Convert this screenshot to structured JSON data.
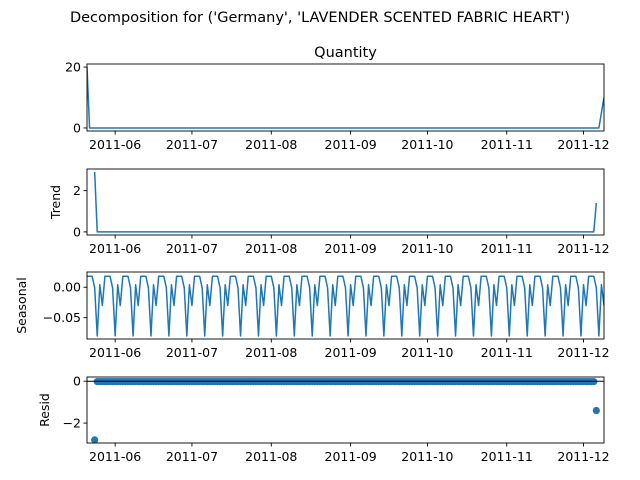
{
  "figure": {
    "title": "Decomposition for ('Germany', 'LAVENDER SCENTED FABRIC HEART')"
  },
  "chart_data": [
    {
      "type": "line",
      "title": "Quantity",
      "ylabel": "",
      "x_range": [
        "2011-05-21",
        "2011-12-09"
      ],
      "ylim": [
        -1,
        21
      ],
      "yticks": [
        0,
        20
      ],
      "ytick_labels": [
        "0",
        "20"
      ],
      "xticks": [
        "2011-06-01",
        "2011-07-01",
        "2011-08-01",
        "2011-09-01",
        "2011-10-01",
        "2011-11-01",
        "2011-12-01"
      ],
      "xtick_labels": [
        "2011-06",
        "2011-07",
        "2011-08",
        "2011-09",
        "2011-10",
        "2011-11",
        "2011-12"
      ],
      "series": [
        {
          "color": "#1f77b4",
          "points": [
            [
              "2011-05-21",
              20
            ],
            [
              "2011-05-22",
              0
            ],
            [
              "2011-12-07",
              0
            ],
            [
              "2011-12-09",
              10
            ]
          ]
        }
      ]
    },
    {
      "type": "line",
      "title": "",
      "ylabel": "Trend",
      "x_range": [
        "2011-05-21",
        "2011-12-09"
      ],
      "ylim": [
        -0.15,
        3.05
      ],
      "yticks": [
        0,
        2
      ],
      "ytick_labels": [
        "0",
        "2"
      ],
      "xticks": [
        "2011-06-01",
        "2011-07-01",
        "2011-08-01",
        "2011-09-01",
        "2011-10-01",
        "2011-11-01",
        "2011-12-01"
      ],
      "xtick_labels": [
        "2011-06",
        "2011-07",
        "2011-08",
        "2011-09",
        "2011-10",
        "2011-11",
        "2011-12"
      ],
      "series": [
        {
          "color": "#1f77b4",
          "points": [
            [
              "2011-05-24",
              2.9
            ],
            [
              "2011-05-25",
              0
            ],
            [
              "2011-12-05",
              0
            ],
            [
              "2011-12-06",
              1.4
            ]
          ]
        }
      ]
    },
    {
      "type": "line",
      "title": "",
      "ylabel": "Seasonal",
      "x_range": [
        "2011-05-21",
        "2011-12-09"
      ],
      "ylim": [
        -0.085,
        0.025
      ],
      "yticks": [
        0,
        -0.05
      ],
      "ytick_labels": [
        "0.00",
        "−0.05"
      ],
      "xticks": [
        "2011-06-01",
        "2011-07-01",
        "2011-08-01",
        "2011-09-01",
        "2011-10-01",
        "2011-11-01",
        "2011-12-01"
      ],
      "xtick_labels": [
        "2011-06",
        "2011-07",
        "2011-08",
        "2011-09",
        "2011-10",
        "2011-11",
        "2011-12"
      ],
      "series": [
        {
          "color": "#1f77b4",
          "start": "2011-05-21",
          "end": "2011-12-09",
          "weekly_pattern": [
            0.018,
            0.018,
            0.018,
            -0.001,
            -0.08,
            0.004,
            -0.03
          ]
        }
      ]
    },
    {
      "type": "scatter",
      "title": "",
      "ylabel": "Resid",
      "x_range": [
        "2011-05-21",
        "2011-12-09"
      ],
      "ylim": [
        -2.95,
        0.2
      ],
      "yticks": [
        0,
        -2
      ],
      "ytick_labels": [
        "0",
        "−2"
      ],
      "xticks": [
        "2011-06-01",
        "2011-07-01",
        "2011-08-01",
        "2011-09-01",
        "2011-10-01",
        "2011-11-01",
        "2011-12-01"
      ],
      "xtick_labels": [
        "2011-06",
        "2011-07",
        "2011-08",
        "2011-09",
        "2011-10",
        "2011-11",
        "2011-12"
      ],
      "zero_line": true,
      "series": [
        {
          "color": "#1f77b4",
          "outliers": [
            [
              "2011-05-24",
              -2.8
            ],
            [
              "2011-12-06",
              -1.4
            ]
          ],
          "baseline_start": "2011-05-25",
          "baseline_end": "2011-12-05",
          "baseline_value": -0.02
        }
      ]
    }
  ]
}
